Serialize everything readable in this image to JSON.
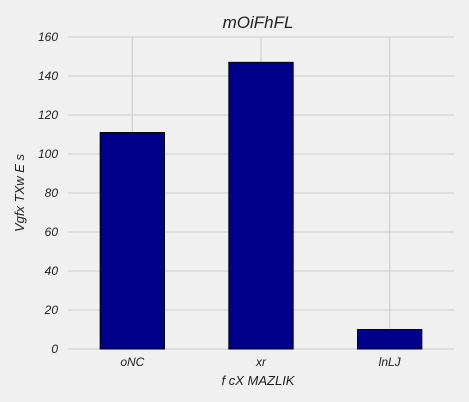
{
  "chart_data": {
    "type": "bar",
    "title": "mOiFhFL",
    "xlabel": "f cX MAZLIK",
    "ylabel": "Vgfx  TXw E  s",
    "categories": [
      "oNC",
      "xr",
      "lnLJ"
    ],
    "values": [
      111,
      147,
      10
    ],
    "ylim": [
      0,
      160
    ],
    "yticks": [
      0,
      20,
      40,
      60,
      80,
      100,
      120,
      140,
      160
    ],
    "grid": true,
    "bar_color": "#00008b",
    "background": "#f0f0f0"
  }
}
